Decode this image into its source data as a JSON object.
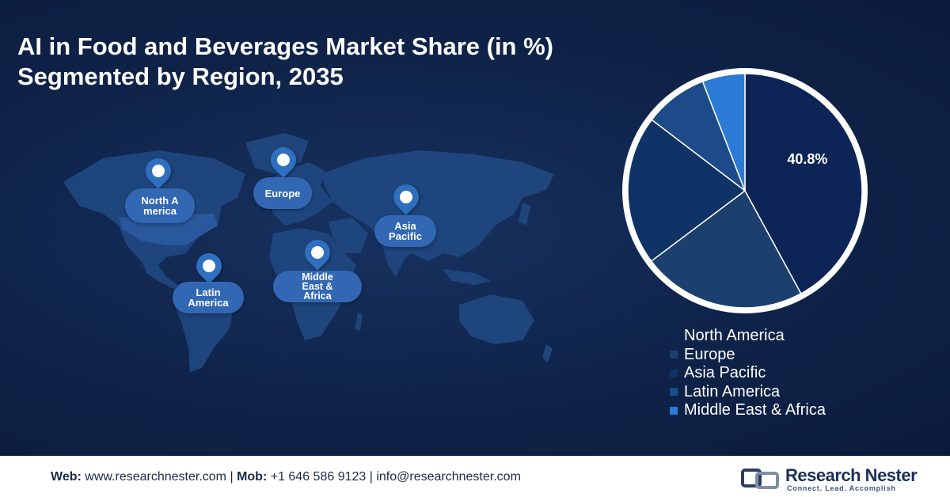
{
  "title": {
    "line1": "AI in Food and Beverages Market Share (in %)",
    "line2": "Segmented by Region, 2035"
  },
  "map": {
    "pins": [
      {
        "label": "North America",
        "icon": "location-pin-icon"
      },
      {
        "label": "Europe",
        "icon": "location-pin-icon"
      },
      {
        "label": "Asia Pacific",
        "icon": "location-pin-icon"
      },
      {
        "label": "Latin America",
        "icon": "location-pin-icon"
      },
      {
        "label": "Middle East & Africa",
        "icon": "location-pin-icon"
      }
    ]
  },
  "chart_data": {
    "type": "pie",
    "title": "AI in Food and Beverages Market Share (in %) Segmented by Region, 2035",
    "categories": [
      "North America",
      "Europe",
      "Asia Pacific",
      "Latin America",
      "Middle East & Africa"
    ],
    "values": [
      40.8,
      22.0,
      20.0,
      8.5,
      5.7
    ],
    "data_labels": [
      "40.8%",
      "",
      "",
      "",
      ""
    ],
    "colors": [
      "#0c2456",
      "#1b3f6f",
      "#0f3267",
      "#1d4b89",
      "#2b7ad6"
    ],
    "legend_position": "bottom-right"
  },
  "footer": {
    "web_label": "Web:",
    "web": "www.researchnester.com",
    "sep1": "|",
    "mob_label": "Mob:",
    "mob": "+1 646 586 9123",
    "sep2": "|",
    "email": "info@researchnester.com",
    "logo_name": "Research Nester",
    "logo_tagline": "Connect. Lead. Accomplish"
  }
}
